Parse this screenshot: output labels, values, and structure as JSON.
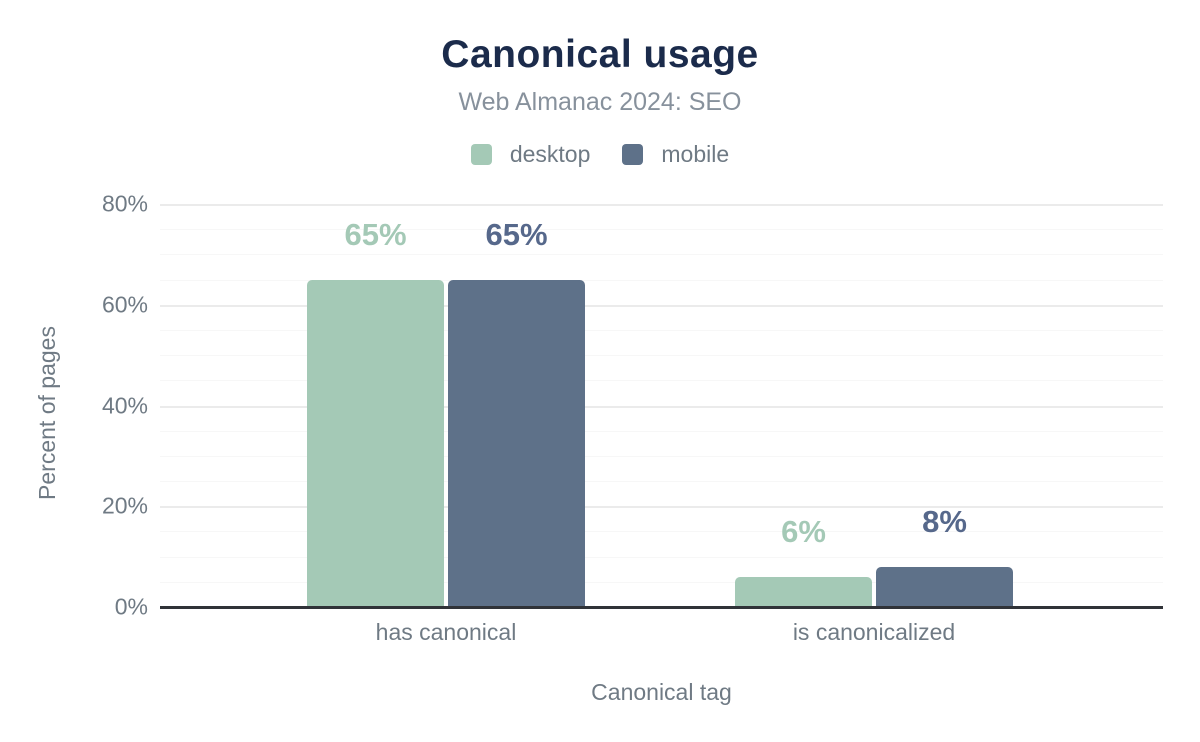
{
  "chart_data": {
    "type": "bar",
    "title": "Canonical usage",
    "subtitle": "Web Almanac 2024: SEO",
    "categories": [
      "has canonical",
      "is canonicalized"
    ],
    "series": [
      {
        "name": "desktop",
        "values": [
          65,
          6
        ],
        "data_labels": [
          "65%",
          "6%"
        ]
      },
      {
        "name": "mobile",
        "values": [
          65,
          8
        ],
        "data_labels": [
          "65%",
          "8%"
        ]
      }
    ],
    "xlabel": "Canonical tag",
    "ylabel": "Percent of pages",
    "ylim": [
      0,
      80
    ],
    "y_tick_labels": [
      "0%",
      "20%",
      "40%",
      "60%",
      "80%"
    ],
    "y_major_step": 20,
    "y_minor_step": 5,
    "grid": true,
    "legend_position": "top"
  },
  "colors": {
    "background": "#ffffff",
    "title": "#1b2b4b",
    "subtitle": "#87919c",
    "axis_text": "#6f7a84",
    "axis_line": "#303338",
    "grid_major": "#ebebeb",
    "grid_minor": "#f7f7f7",
    "series": {
      "desktop": "#a4c9b6",
      "mobile": "#5e7189"
    },
    "data_labels": {
      "desktop": "#a4c9b6",
      "mobile": "#56688b"
    }
  }
}
